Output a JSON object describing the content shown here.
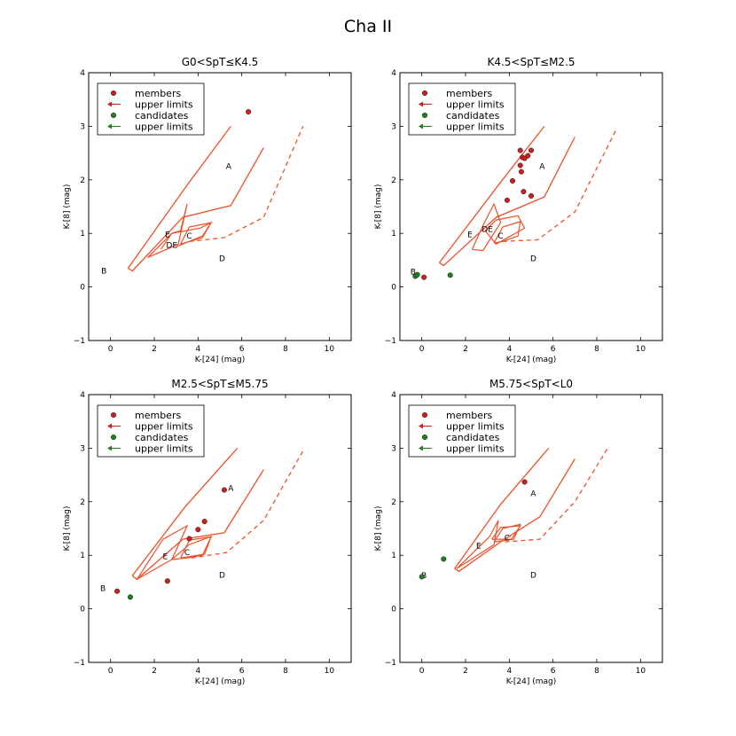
{
  "figure": {
    "title": "Cha II"
  },
  "legend_entries": [
    "members",
    "upper limits",
    "candidates",
    "upper limits"
  ],
  "colors": {
    "member": "#cc1f1f",
    "candidate": "#1f7f1f",
    "region_outline": "#f0502a"
  },
  "chart_data": [
    {
      "type": "scatter",
      "title": "G0<SpT≤K4.5",
      "xlabel": "K-[24] (mag)",
      "ylabel": "K-[8] (mag)",
      "xlim": [
        -1,
        11
      ],
      "ylim": [
        -1,
        4
      ],
      "xticks": [
        "0",
        "2",
        "4",
        "6",
        "8",
        "10"
      ],
      "yticks": [
        "−1",
        "0",
        "1",
        "2",
        "3",
        "4"
      ],
      "legend_position": "top-left",
      "grid": false,
      "series": [
        {
          "name": "members",
          "points": [
            [
              6.3,
              3.27
            ]
          ]
        },
        {
          "name": "candidates",
          "points": []
        }
      ],
      "regions": [
        {
          "label": "A",
          "at": [
            5.4,
            2.25
          ]
        },
        {
          "label": "B",
          "at": [
            -0.3,
            0.3
          ]
        },
        {
          "label": "C",
          "at": [
            3.6,
            0.95
          ]
        },
        {
          "label": "D",
          "at": [
            5.1,
            0.53
          ]
        },
        {
          "label": "E",
          "at": [
            2.6,
            0.98
          ]
        },
        {
          "label": "DE",
          "at": [
            2.8,
            0.78
          ]
        }
      ]
    },
    {
      "type": "scatter",
      "title": "K4.5<SpT≤M2.5",
      "xlabel": "K-[24] (mag)",
      "ylabel": "K-[8] (mag)",
      "xlim": [
        -1,
        11
      ],
      "ylim": [
        -1,
        4
      ],
      "xticks": [
        "0",
        "2",
        "4",
        "6",
        "8",
        "10"
      ],
      "yticks": [
        "−1",
        "0",
        "1",
        "2",
        "3",
        "4"
      ],
      "legend_position": "top-left",
      "grid": false,
      "series": [
        {
          "name": "members",
          "points": [
            [
              4.5,
              2.55
            ],
            [
              4.6,
              2.42
            ],
            [
              4.7,
              2.4
            ],
            [
              4.85,
              2.45
            ],
            [
              5.0,
              2.55
            ],
            [
              4.5,
              2.27
            ],
            [
              4.55,
              2.15
            ],
            [
              4.15,
              1.98
            ],
            [
              4.65,
              1.78
            ],
            [
              5.0,
              1.7
            ],
            [
              3.9,
              1.62
            ],
            [
              0.1,
              0.18
            ]
          ]
        },
        {
          "name": "candidates",
          "points": [
            [
              -0.3,
              0.2
            ],
            [
              -0.2,
              0.23
            ],
            [
              1.3,
              0.22
            ]
          ]
        }
      ],
      "regions": [
        {
          "label": "A",
          "at": [
            5.5,
            2.25
          ]
        },
        {
          "label": "B",
          "at": [
            -0.4,
            0.28
          ]
        },
        {
          "label": "C",
          "at": [
            3.6,
            0.95
          ]
        },
        {
          "label": "D",
          "at": [
            5.1,
            0.53
          ]
        },
        {
          "label": "E",
          "at": [
            2.2,
            0.98
          ]
        },
        {
          "label": "DE",
          "at": [
            3.0,
            1.08
          ]
        }
      ]
    },
    {
      "type": "scatter",
      "title": "M2.5<SpT≤M5.75",
      "xlabel": "K-[24] (mag)",
      "ylabel": "K-[8] (mag)",
      "xlim": [
        -1,
        11
      ],
      "ylim": [
        -1,
        4
      ],
      "xticks": [
        "0",
        "2",
        "4",
        "6",
        "8",
        "10"
      ],
      "yticks": [
        "−1",
        "0",
        "1",
        "2",
        "3",
        "4"
      ],
      "legend_position": "top-left",
      "grid": false,
      "series": [
        {
          "name": "members",
          "points": [
            [
              5.2,
              2.22
            ],
            [
              4.3,
              1.63
            ],
            [
              4.0,
              1.48
            ],
            [
              3.6,
              1.31
            ],
            [
              2.6,
              0.52
            ],
            [
              0.3,
              0.33
            ]
          ]
        },
        {
          "name": "candidates",
          "points": [
            [
              0.9,
              0.22
            ]
          ]
        }
      ],
      "regions": [
        {
          "label": "A",
          "at": [
            5.5,
            2.25
          ]
        },
        {
          "label": "B",
          "at": [
            -0.35,
            0.38
          ]
        },
        {
          "label": "C",
          "at": [
            3.5,
            1.05
          ]
        },
        {
          "label": "D",
          "at": [
            5.1,
            0.63
          ]
        },
        {
          "label": "E",
          "at": [
            2.5,
            0.98
          ]
        }
      ]
    },
    {
      "type": "scatter",
      "title": "M5.75<SpT<L0",
      "xlabel": "K-[24] (mag)",
      "ylabel": "K-[8] (mag)",
      "xlim": [
        -1,
        11
      ],
      "ylim": [
        -1,
        4
      ],
      "xticks": [
        "0",
        "2",
        "4",
        "6",
        "8",
        "10"
      ],
      "yticks": [
        "−1",
        "0",
        "1",
        "2",
        "3",
        "4"
      ],
      "legend_position": "top-left",
      "grid": false,
      "series": [
        {
          "name": "members",
          "points": [
            [
              4.7,
              2.37
            ]
          ]
        },
        {
          "name": "candidates",
          "points": [
            [
              1.0,
              0.93
            ],
            [
              0.0,
              0.6
            ]
          ]
        }
      ],
      "regions": [
        {
          "label": "A",
          "at": [
            5.1,
            2.15
          ]
        },
        {
          "label": "B",
          "at": [
            0.1,
            0.62
          ]
        },
        {
          "label": "C",
          "at": [
            3.9,
            1.33
          ]
        },
        {
          "label": "D",
          "at": [
            5.1,
            0.63
          ]
        },
        {
          "label": "E",
          "at": [
            2.6,
            1.18
          ]
        }
      ]
    }
  ]
}
